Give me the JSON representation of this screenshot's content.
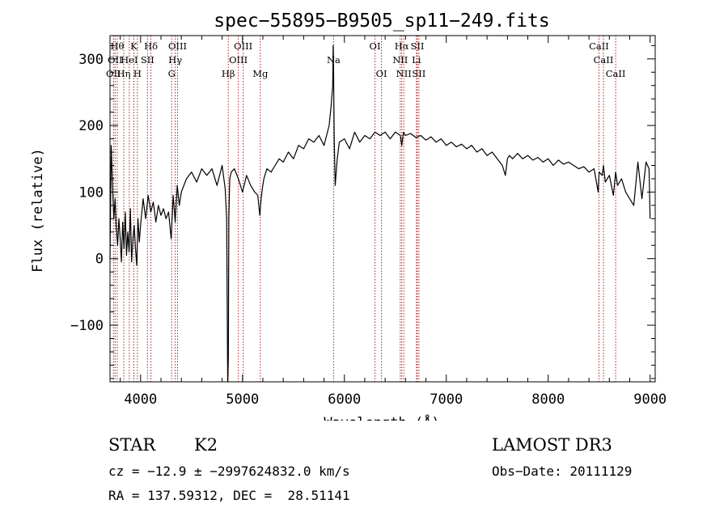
{
  "chart_data": {
    "type": "line",
    "title": "spec−55895−B9505_sp11−249.fits",
    "xlabel": "Wavelength (Å)",
    "ylabel": "Flux (relative)",
    "xlim": [
      3700,
      9050
    ],
    "ylim": [
      -185,
      335
    ],
    "xticks": [
      4000,
      5000,
      6000,
      7000,
      8000,
      9000
    ],
    "yticks": [
      -100,
      0,
      100,
      200,
      300
    ],
    "ytick_labels": [
      "−100",
      "0",
      "100",
      "200",
      "300"
    ],
    "series": [
      {
        "name": "spectrum",
        "x": [
          3700,
          3712,
          3725,
          3737,
          3750,
          3762,
          3775,
          3787,
          3800,
          3812,
          3825,
          3837,
          3850,
          3862,
          3875,
          3887,
          3900,
          3912,
          3925,
          3937,
          3950,
          3962,
          3975,
          3987,
          4000,
          4025,
          4050,
          4075,
          4100,
          4125,
          4150,
          4175,
          4200,
          4225,
          4250,
          4275,
          4300,
          4320,
          4340,
          4360,
          4380,
          4400,
          4450,
          4500,
          4550,
          4600,
          4650,
          4700,
          4750,
          4800,
          4830,
          4845,
          4855,
          4861,
          4866,
          4875,
          4890,
          4920,
          4960,
          5000,
          5040,
          5080,
          5120,
          5150,
          5170,
          5183,
          5195,
          5210,
          5240,
          5280,
          5320,
          5360,
          5400,
          5450,
          5500,
          5550,
          5600,
          5650,
          5700,
          5750,
          5800,
          5850,
          5870,
          5885,
          5890,
          5893,
          5896,
          5900,
          5910,
          5930,
          5950,
          6000,
          6050,
          6100,
          6150,
          6200,
          6250,
          6300,
          6350,
          6400,
          6450,
          6500,
          6550,
          6563,
          6580,
          6600,
          6650,
          6700,
          6750,
          6800,
          6850,
          6900,
          6950,
          7000,
          7050,
          7100,
          7150,
          7200,
          7250,
          7300,
          7350,
          7400,
          7450,
          7500,
          7550,
          7580,
          7600,
          7620,
          7650,
          7700,
          7750,
          7800,
          7850,
          7900,
          7950,
          8000,
          8050,
          8100,
          8150,
          8200,
          8250,
          8300,
          8350,
          8400,
          8450,
          8490,
          8500,
          8530,
          8542,
          8560,
          8600,
          8640,
          8662,
          8680,
          8720,
          8760,
          8800,
          8840,
          8880,
          8920,
          8960,
          8990,
          9000
        ],
        "y": [
          0,
          170,
          110,
          60,
          90,
          45,
          20,
          60,
          30,
          -5,
          55,
          15,
          70,
          5,
          40,
          10,
          75,
          -5,
          30,
          50,
          15,
          -10,
          60,
          25,
          50,
          90,
          60,
          95,
          70,
          85,
          55,
          80,
          65,
          75,
          60,
          70,
          30,
          95,
          55,
          110,
          80,
          100,
          120,
          130,
          115,
          135,
          125,
          135,
          110,
          140,
          105,
          60,
          -185,
          -150,
          60,
          120,
          130,
          135,
          120,
          100,
          125,
          110,
          100,
          95,
          65,
          90,
          105,
          120,
          135,
          130,
          140,
          150,
          145,
          160,
          150,
          170,
          165,
          180,
          175,
          185,
          170,
          200,
          230,
          260,
          320,
          300,
          240,
          180,
          110,
          150,
          175,
          180,
          165,
          190,
          175,
          185,
          180,
          190,
          185,
          190,
          180,
          190,
          185,
          170,
          190,
          185,
          188,
          182,
          185,
          178,
          183,
          175,
          180,
          170,
          175,
          168,
          172,
          165,
          170,
          160,
          165,
          155,
          160,
          150,
          140,
          125,
          150,
          155,
          150,
          158,
          150,
          155,
          148,
          152,
          145,
          150,
          140,
          148,
          142,
          145,
          140,
          135,
          138,
          130,
          135,
          100,
          130,
          125,
          140,
          115,
          125,
          95,
          130,
          110,
          120,
          100,
          90,
          80,
          145,
          90,
          145,
          135,
          60
        ]
      }
    ],
    "lines": [
      {
        "wl": 3734,
        "label": "OII",
        "row": 3
      },
      {
        "wl": 3750,
        "label": "OII",
        "row": 2
      },
      {
        "wl": 3771,
        "label": "Hθ",
        "row": 1
      },
      {
        "wl": 3835,
        "label": "Hη",
        "row": 3
      },
      {
        "wl": 3889,
        "label": "HeI",
        "row": 2
      },
      {
        "wl": 3934,
        "label": "K",
        "row": 1
      },
      {
        "wl": 3969,
        "label": "H",
        "row": 3
      },
      {
        "wl": 4068,
        "label": "SII",
        "row": 2
      },
      {
        "wl": 4102,
        "label": "Hδ",
        "row": 1
      },
      {
        "wl": 4305,
        "label": "G",
        "row": 3
      },
      {
        "wl": 4340,
        "label": "Hγ",
        "row": 2
      },
      {
        "wl": 4363,
        "label": "OIII",
        "row": 1
      },
      {
        "wl": 4861,
        "label": "Hβ",
        "row": 3
      },
      {
        "wl": 4959,
        "label": "OIII",
        "row": 2
      },
      {
        "wl": 5007,
        "label": "OIII",
        "row": 1
      },
      {
        "wl": 5175,
        "label": "Mg",
        "row": 3
      },
      {
        "wl": 5894,
        "label": "Na",
        "row": 2
      },
      {
        "wl": 6300,
        "label": "OI",
        "row": 1
      },
      {
        "wl": 6364,
        "label": "OI",
        "row": 3
      },
      {
        "wl": 6548,
        "label": "NII",
        "row": 2
      },
      {
        "wl": 6563,
        "label": "Hα",
        "row": 1
      },
      {
        "wl": 6583,
        "label": "NII",
        "row": 3
      },
      {
        "wl": 6707,
        "label": "Li",
        "row": 2
      },
      {
        "wl": 6716,
        "label": "SII",
        "row": 1
      },
      {
        "wl": 6731,
        "label": "SII",
        "row": 3
      },
      {
        "wl": 8498,
        "label": "CaII",
        "row": 1
      },
      {
        "wl": 8542,
        "label": "CaII",
        "row": 2
      },
      {
        "wl": 8662,
        "label": "CaII",
        "row": 3
      }
    ]
  },
  "info": {
    "class": "STAR",
    "subclass": "K2",
    "survey": "LAMOST DR3",
    "cz": "cz = −12.9 ± −2997624832.0 km/s",
    "obs_date": "Obs−Date: 20111129",
    "radec": "RA = 137.59312, DEC =  28.51141"
  },
  "colors": {
    "spectrum": "#000000",
    "line_marker": "#b22222",
    "axis": "#000000"
  }
}
